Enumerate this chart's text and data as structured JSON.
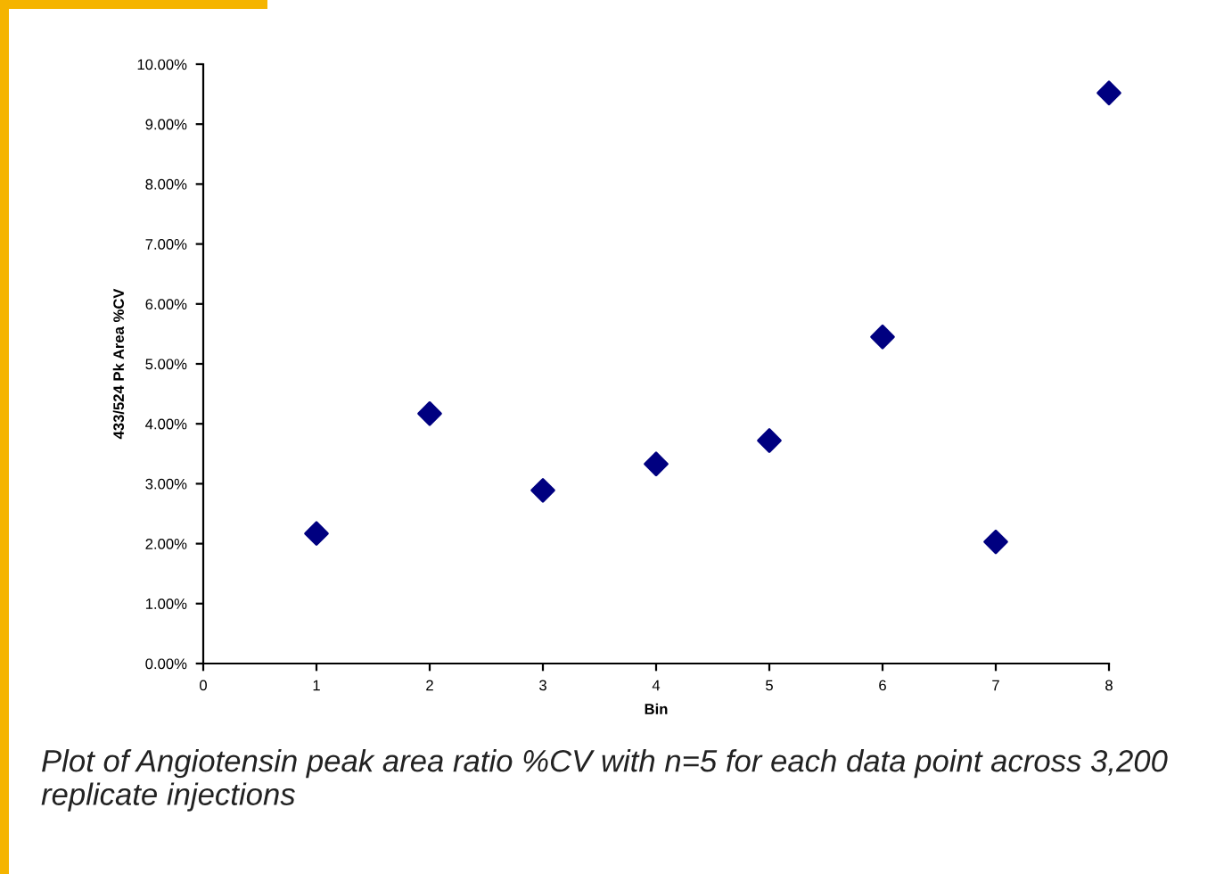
{
  "chart_data": {
    "type": "scatter",
    "xlabel": "Bin",
    "ylabel": "433/524 Pk Area %CV",
    "annotations": [
      "Plot of Angiotensin peak area ratio %CV with n=5 for each data point across 3,200 replicate injections"
    ],
    "x": [
      1,
      2,
      3,
      4,
      5,
      6,
      7,
      8
    ],
    "series": [
      {
        "color": "#000080",
        "values": [
          2.17,
          4.17,
          2.89,
          3.33,
          3.72,
          5.45,
          2.03,
          9.52
        ]
      }
    ],
    "marker": "diamond",
    "grid": false,
    "xlim": [
      0,
      8
    ],
    "xticks": [
      0,
      1,
      2,
      3,
      4,
      5,
      6,
      7,
      8
    ],
    "ylim": [
      0,
      10
    ],
    "yticks": [
      {
        "value": 0,
        "label": "0.00%"
      },
      {
        "value": 1,
        "label": "1.00%"
      },
      {
        "value": 2,
        "label": "2.00%"
      },
      {
        "value": 3,
        "label": "3.00%"
      },
      {
        "value": 4,
        "label": "4.00%"
      },
      {
        "value": 5,
        "label": "5.00%"
      },
      {
        "value": 6,
        "label": "6.00%"
      },
      {
        "value": 7,
        "label": "7.00%"
      },
      {
        "value": 8,
        "label": "8.00%"
      },
      {
        "value": 9,
        "label": "9.00%"
      },
      {
        "value": 10,
        "label": "10.00%"
      }
    ]
  }
}
